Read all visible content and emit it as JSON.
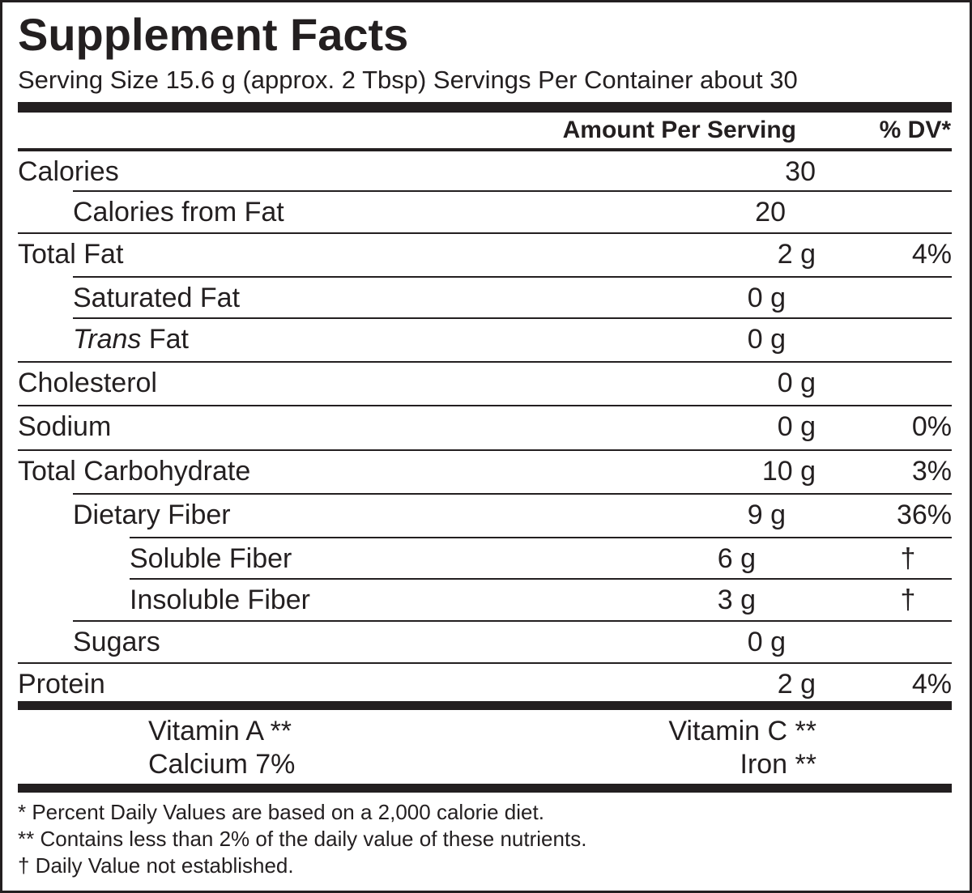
{
  "header": {
    "title": "Supplement Facts",
    "serving": "Serving Size 15.6 g (approx. 2 Tbsp)  Servings Per Container about 30"
  },
  "table": {
    "columns": [
      "Amount Per Serving",
      "% DV*"
    ],
    "rows": [
      {
        "name": "Calories",
        "amount": "30"
      },
      {
        "name": "Calories from Fat",
        "amount": "20"
      },
      {
        "name": "Total Fat",
        "amount": "2 g",
        "dv": "4%"
      },
      {
        "name": "Saturated Fat",
        "amount": "0 g"
      },
      {
        "name_italic": "Trans",
        "name": "Fat",
        "amount": "0 g"
      },
      {
        "name": "Cholesterol",
        "amount": "0 g"
      },
      {
        "name": "Sodium",
        "amount": "0 g",
        "dv": "0%"
      },
      {
        "name": "Total Carbohydrate",
        "amount": "10 g",
        "dv": "3%"
      },
      {
        "name": "Dietary Fiber",
        "amount": "9 g",
        "dv": "36%"
      },
      {
        "name": "Soluble Fiber",
        "amount": "6 g",
        "dv": "†"
      },
      {
        "name": "Insoluble Fiber",
        "amount": "3 g",
        "dv": "†"
      },
      {
        "name": "Sugars",
        "amount": "0 g"
      },
      {
        "name": "Protein",
        "amount": "2 g",
        "dv": "4%"
      }
    ]
  },
  "vitamins": [
    [
      "Vitamin A **",
      "Vitamin C **"
    ],
    [
      "Calcium 7%",
      "Iron **"
    ]
  ],
  "footnotes": [
    "* Percent Daily Values are based on a 2,000 calorie diet.",
    "** Contains less than 2% of the daily value of these nutrients.",
    "† Daily Value not established."
  ]
}
